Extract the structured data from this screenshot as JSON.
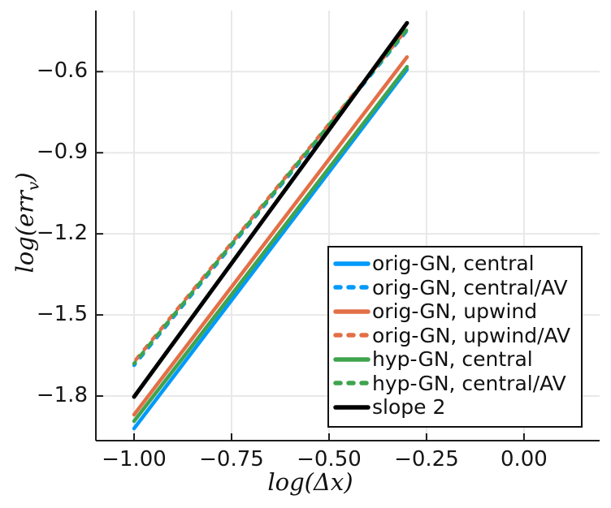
{
  "figure": {
    "background": "#FFFFFF",
    "axis_color": "#1C1C1C",
    "grid_color": "#E8E8E8",
    "tick_text_color": "#151515"
  },
  "palette": {
    "blue": "#009AFA",
    "orange": "#E36F47",
    "green": "#3EA44E",
    "black": "#000000"
  },
  "xlabel": {
    "pre": "log(",
    "arg": "Δx",
    "post": ")"
  },
  "ylabel": {
    "pre": "log(err",
    "sub": "v",
    "post": ")"
  },
  "legend": {
    "position": "inside-right",
    "entries": [
      {
        "label": "orig-GN, central",
        "color": "blue",
        "style": "solid"
      },
      {
        "label": "orig-GN, central/AV",
        "color": "blue",
        "style": "dashed"
      },
      {
        "label": "orig-GN, upwind",
        "color": "orange",
        "style": "solid"
      },
      {
        "label": "orig-GN, upwind/AV",
        "color": "orange",
        "style": "dashed"
      },
      {
        "label": "hyp-GN, central",
        "color": "green",
        "style": "solid"
      },
      {
        "label": "hyp-GN, central/AV",
        "color": "green",
        "style": "dashed"
      },
      {
        "label": "slope 2",
        "color": "black",
        "style": "solid"
      }
    ]
  },
  "chart_data": {
    "type": "line",
    "title": "",
    "xlabel": "log(Δx)",
    "ylabel": "log(err_v)",
    "xlim": [
      -1.098,
      0.194
    ],
    "ylim": [
      -1.965,
      -0.374
    ],
    "grid": true,
    "x_ticks": {
      "values": [
        -1.0,
        -0.75,
        -0.5,
        -0.25,
        0.0
      ],
      "labels": [
        "−1.00",
        "−0.75",
        "−0.50",
        "−0.25",
        "0.00"
      ]
    },
    "y_ticks": {
      "values": [
        -0.6,
        -0.9,
        -1.2,
        -1.5,
        -1.8
      ],
      "labels": [
        "−0.6",
        "−0.9",
        "−1.2",
        "−1.5",
        "−1.8"
      ]
    },
    "series": [
      {
        "name": "orig-GN, central",
        "color": "blue",
        "style": "solid",
        "width": 4.5,
        "points": [
          [
            -1.0,
            -1.92
          ],
          [
            -0.3,
            -0.592
          ]
        ]
      },
      {
        "name": "orig-GN, central/AV",
        "color": "blue",
        "style": "dashed",
        "width": 4.5,
        "points": [
          [
            -1.0,
            -1.686
          ],
          [
            -0.3,
            -0.448
          ]
        ]
      },
      {
        "name": "orig-GN, upwind",
        "color": "orange",
        "style": "solid",
        "width": 4.5,
        "points": [
          [
            -1.0,
            -1.869
          ],
          [
            -0.3,
            -0.546
          ]
        ]
      },
      {
        "name": "orig-GN, upwind/AV",
        "color": "orange",
        "style": "dashed",
        "width": 4.5,
        "points": [
          [
            -1.0,
            -1.674
          ],
          [
            -0.3,
            -0.442
          ]
        ]
      },
      {
        "name": "hyp-GN, central",
        "color": "green",
        "style": "solid",
        "width": 4.5,
        "points": [
          [
            -1.0,
            -1.893
          ],
          [
            -0.3,
            -0.582
          ]
        ]
      },
      {
        "name": "hyp-GN, central/AV",
        "color": "green",
        "style": "dashed",
        "width": 4.5,
        "points": [
          [
            -1.0,
            -1.68
          ],
          [
            -0.3,
            -0.444
          ]
        ]
      },
      {
        "name": "slope 2",
        "color": "black",
        "style": "solid",
        "width": 5,
        "points": [
          [
            -1.0,
            -1.803
          ],
          [
            -0.3,
            -0.42
          ]
        ]
      }
    ]
  }
}
